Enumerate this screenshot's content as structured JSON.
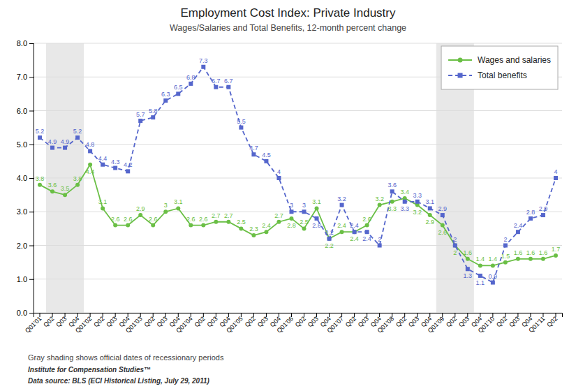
{
  "chart_data": {
    "type": "line",
    "title": "Employment Cost Index:  Private Industry",
    "subtitle": "Wages/Salaries and Total Benefits, 12-month percent change",
    "categories": [
      "Q01'01",
      "Q02",
      "Q03",
      "Q04",
      "Q01'02",
      "Q02",
      "Q03",
      "Q04",
      "Q01'03",
      "Q02",
      "Q03",
      "Q04",
      "Q01'04",
      "Q02",
      "Q03",
      "Q04",
      "Q01'05",
      "Q02",
      "Q03",
      "Q04",
      "Q01'06",
      "Q02",
      "Q03",
      "Q04",
      "Q01'07",
      "Q02",
      "Q03",
      "Q04",
      "Q01'08",
      "Q02",
      "Q03",
      "Q04",
      "Q01'09",
      "Q02",
      "Q03",
      "Q04",
      "Q01'10",
      "Q02",
      "Q03",
      "Q04",
      "Q01'11",
      "Q02"
    ],
    "series": [
      {
        "name": "Wages and salaries",
        "color": "#6abf45",
        "marker": "circle",
        "line_style": "solid",
        "values": [
          3.8,
          3.6,
          3.5,
          3.8,
          4.4,
          3.1,
          2.6,
          2.6,
          2.9,
          2.6,
          3.0,
          3.1,
          2.6,
          2.6,
          2.7,
          2.7,
          2.5,
          2.3,
          2.4,
          2.7,
          2.8,
          2.5,
          3.1,
          2.2,
          2.4,
          2.4,
          2.6,
          3.2,
          3.3,
          3.4,
          3.2,
          2.9,
          2.6,
          2.0,
          1.6,
          1.4,
          1.4,
          1.5,
          1.6,
          1.6,
          1.6,
          1.7
        ]
      },
      {
        "name": "Total benefits",
        "color": "#5566cc",
        "marker": "square",
        "line_style": "dashed",
        "values": [
          5.2,
          4.9,
          4.9,
          5.2,
          4.8,
          4.4,
          4.3,
          4.2,
          5.7,
          5.8,
          6.3,
          6.5,
          6.8,
          7.3,
          6.7,
          6.7,
          5.5,
          4.7,
          4.5,
          4.0,
          3.0,
          3.0,
          2.8,
          2.2,
          3.2,
          2.4,
          2.4,
          2.0,
          3.6,
          3.3,
          3.3,
          3.1,
          2.9,
          2.0,
          1.3,
          1.1,
          0.9,
          2.0,
          2.4,
          2.8,
          2.9,
          4.0
        ]
      }
    ],
    "shaded_spans": {
      "color": "#e8e8e8",
      "spans": [
        [
          0.5,
          3.5
        ],
        [
          31.5,
          34.5
        ]
      ]
    },
    "ylim": [
      0.0,
      8.0
    ],
    "yticks": [
      {
        "value": 0,
        "label": "0.0"
      },
      {
        "value": 1,
        "label": "1.0"
      },
      {
        "value": 2,
        "label": "2.0"
      },
      {
        "value": 3,
        "label": "3.0"
      },
      {
        "value": 4,
        "label": "4.0"
      },
      {
        "value": 5,
        "label": "5.0"
      },
      {
        "value": 6,
        "label": "6.0"
      },
      {
        "value": 7,
        "label": "7.0"
      },
      {
        "value": 8,
        "label": "8.0"
      }
    ],
    "grid": true,
    "legend": "upper right",
    "data_labels": true,
    "annotations": [
      "Gray shading shows official dates of recessionary periods",
      "Institute for Compensation Studies™",
      "Data source: BLS (ECI Historical Listing, July 29, 2011)"
    ]
  }
}
